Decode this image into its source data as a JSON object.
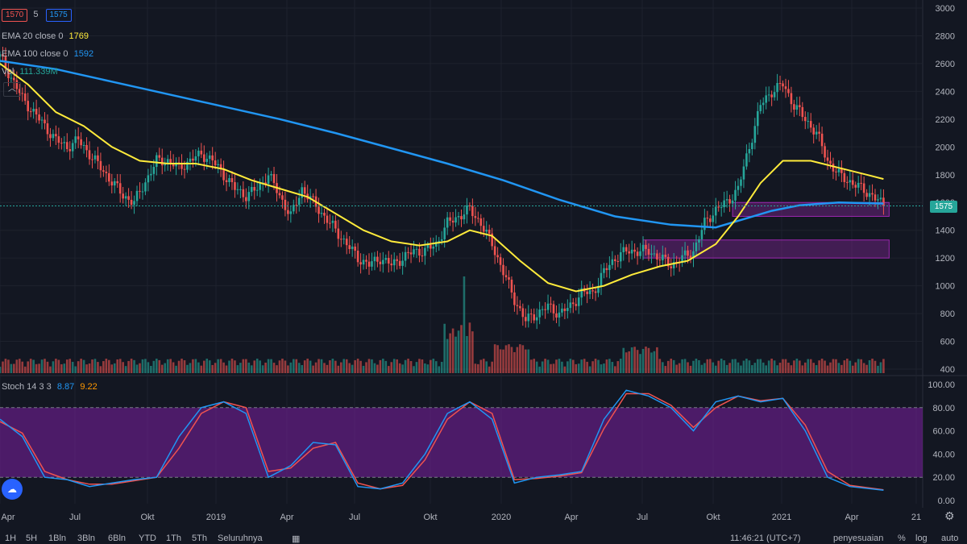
{
  "legend": {
    "open_box": "1570",
    "interval": "5",
    "close_box": "1575",
    "ema20_label": "EMA 20 close 0",
    "ema20_value": "1769",
    "ema100_label": "EMA 100 close 0",
    "ema100_value": "1592",
    "vol_label": "Vol",
    "vol_value": "111.339M",
    "stoch_label": "Stoch 14 3 3",
    "stoch_k": "8.87",
    "stoch_d": "9.22"
  },
  "current_price": "1575",
  "bottom_bar": {
    "ranges": [
      "1H",
      "5H",
      "1Bln",
      "3Bln",
      "6Bln",
      "YTD",
      "1Th",
      "5Th",
      "Seluruhnya"
    ],
    "time": "11:46:21 (UTC+7)",
    "adjust": "penyesuaian",
    "percent": "%",
    "log": "log",
    "auto": "auto"
  },
  "chart_data": [
    {
      "type": "candlestick",
      "price_axis_ticks": [
        400,
        600,
        800,
        1000,
        1200,
        1400,
        1600,
        1800,
        2000,
        2200,
        2400,
        2600,
        2800,
        3000
      ],
      "time_axis_labels": [
        "Apr",
        "Jul",
        "Okt",
        "2019",
        "Apr",
        "Jul",
        "Okt",
        "2020",
        "Apr",
        "Jul",
        "Okt",
        "2021",
        "Apr",
        "21"
      ],
      "ylim": [
        400,
        3000
      ],
      "close_series": [
        [
          0,
          2650
        ],
        [
          4,
          2500
        ],
        [
          8,
          2350
        ],
        [
          12,
          2250
        ],
        [
          16,
          2150
        ],
        [
          20,
          2050
        ],
        [
          24,
          2000
        ],
        [
          28,
          2050
        ],
        [
          32,
          1950
        ],
        [
          36,
          1850
        ],
        [
          40,
          1750
        ],
        [
          44,
          1650
        ],
        [
          48,
          1600
        ],
        [
          52,
          1750
        ],
        [
          56,
          1900
        ],
        [
          60,
          1900
        ],
        [
          64,
          1850
        ],
        [
          68,
          1900
        ],
        [
          72,
          1950
        ],
        [
          76,
          1900
        ],
        [
          80,
          1800
        ],
        [
          84,
          1700
        ],
        [
          88,
          1650
        ],
        [
          92,
          1700
        ],
        [
          96,
          1800
        ],
        [
          100,
          1650
        ],
        [
          104,
          1500
        ],
        [
          108,
          1700
        ],
        [
          112,
          1600
        ],
        [
          116,
          1500
        ],
        [
          120,
          1400
        ],
        [
          124,
          1300
        ],
        [
          128,
          1200
        ],
        [
          132,
          1150
        ],
        [
          136,
          1200
        ],
        [
          140,
          1150
        ],
        [
          144,
          1200
        ],
        [
          148,
          1250
        ],
        [
          152,
          1250
        ],
        [
          156,
          1300
        ],
        [
          160,
          1450
        ],
        [
          164,
          1500
        ],
        [
          168,
          1550
        ],
        [
          172,
          1450
        ],
        [
          176,
          1300
        ],
        [
          180,
          1100
        ],
        [
          184,
          900
        ],
        [
          188,
          750
        ],
        [
          192,
          800
        ],
        [
          196,
          850
        ],
        [
          200,
          800
        ],
        [
          204,
          850
        ],
        [
          208,
          950
        ],
        [
          212,
          950
        ],
        [
          216,
          1100
        ],
        [
          220,
          1200
        ],
        [
          224,
          1250
        ],
        [
          228,
          1250
        ],
        [
          232,
          1250
        ],
        [
          236,
          1200
        ],
        [
          240,
          1150
        ],
        [
          244,
          1200
        ],
        [
          248,
          1250
        ],
        [
          252,
          1450
        ],
        [
          256,
          1550
        ],
        [
          260,
          1600
        ],
        [
          264,
          1700
        ],
        [
          268,
          2000
        ],
        [
          272,
          2300
        ],
        [
          276,
          2400
        ],
        [
          280,
          2450
        ],
        [
          284,
          2300
        ],
        [
          288,
          2200
        ],
        [
          292,
          2100
        ],
        [
          296,
          1900
        ],
        [
          300,
          1800
        ],
        [
          304,
          1750
        ],
        [
          308,
          1700
        ],
        [
          312,
          1650
        ],
        [
          316,
          1575
        ]
      ],
      "ema20_series": [
        [
          0,
          2600
        ],
        [
          10,
          2450
        ],
        [
          20,
          2250
        ],
        [
          30,
          2150
        ],
        [
          40,
          2000
        ],
        [
          50,
          1900
        ],
        [
          60,
          1880
        ],
        [
          70,
          1880
        ],
        [
          80,
          1840
        ],
        [
          90,
          1760
        ],
        [
          100,
          1700
        ],
        [
          110,
          1640
        ],
        [
          120,
          1520
        ],
        [
          130,
          1400
        ],
        [
          140,
          1320
        ],
        [
          150,
          1290
        ],
        [
          160,
          1320
        ],
        [
          168,
          1400
        ],
        [
          176,
          1360
        ],
        [
          186,
          1180
        ],
        [
          196,
          1020
        ],
        [
          206,
          960
        ],
        [
          216,
          1000
        ],
        [
          226,
          1080
        ],
        [
          236,
          1140
        ],
        [
          246,
          1180
        ],
        [
          256,
          1300
        ],
        [
          264,
          1500
        ],
        [
          272,
          1740
        ],
        [
          280,
          1900
        ],
        [
          290,
          1900
        ],
        [
          300,
          1850
        ],
        [
          310,
          1800
        ],
        [
          316,
          1769
        ]
      ],
      "ema100_series": [
        [
          0,
          2620
        ],
        [
          20,
          2560
        ],
        [
          40,
          2470
        ],
        [
          60,
          2380
        ],
        [
          80,
          2290
        ],
        [
          100,
          2200
        ],
        [
          120,
          2100
        ],
        [
          140,
          1990
        ],
        [
          160,
          1880
        ],
        [
          180,
          1760
        ],
        [
          200,
          1620
        ],
        [
          220,
          1500
        ],
        [
          240,
          1440
        ],
        [
          256,
          1420
        ],
        [
          266,
          1480
        ],
        [
          276,
          1540
        ],
        [
          286,
          1580
        ],
        [
          300,
          1600
        ],
        [
          316,
          1592
        ]
      ],
      "zones": [
        {
          "from_x": 262,
          "to_x": 318,
          "low": 1500,
          "high": 1600
        },
        {
          "from_x": 230,
          "to_x": 318,
          "low": 1200,
          "high": 1330
        }
      ]
    },
    {
      "type": "line",
      "title": "Stoch 14 3 3",
      "ylim": [
        0,
        100
      ],
      "y_ticks": [
        0,
        20,
        40,
        60,
        80,
        100
      ],
      "band": [
        20,
        80
      ],
      "series": [
        {
          "name": "%K",
          "points": [
            [
              0,
              70
            ],
            [
              8,
              55
            ],
            [
              16,
              20
            ],
            [
              24,
              18
            ],
            [
              32,
              12
            ],
            [
              40,
              15
            ],
            [
              48,
              18
            ],
            [
              56,
              20
            ],
            [
              64,
              55
            ],
            [
              72,
              80
            ],
            [
              80,
              85
            ],
            [
              88,
              75
            ],
            [
              96,
              20
            ],
            [
              104,
              30
            ],
            [
              112,
              50
            ],
            [
              120,
              48
            ],
            [
              128,
              12
            ],
            [
              136,
              10
            ],
            [
              144,
              15
            ],
            [
              152,
              40
            ],
            [
              160,
              75
            ],
            [
              168,
              85
            ],
            [
              176,
              70
            ],
            [
              184,
              15
            ],
            [
              192,
              20
            ],
            [
              200,
              22
            ],
            [
              208,
              25
            ],
            [
              216,
              70
            ],
            [
              224,
              95
            ],
            [
              232,
              90
            ],
            [
              240,
              80
            ],
            [
              248,
              60
            ],
            [
              256,
              85
            ],
            [
              264,
              90
            ],
            [
              272,
              85
            ],
            [
              280,
              88
            ],
            [
              288,
              60
            ],
            [
              296,
              20
            ],
            [
              304,
              12
            ],
            [
              316,
              8.87
            ]
          ]
        },
        {
          "name": "%D",
          "points": [
            [
              0,
              68
            ],
            [
              8,
              58
            ],
            [
              16,
              25
            ],
            [
              24,
              18
            ],
            [
              32,
              14
            ],
            [
              40,
              14
            ],
            [
              48,
              17
            ],
            [
              56,
              20
            ],
            [
              64,
              45
            ],
            [
              72,
              75
            ],
            [
              80,
              85
            ],
            [
              88,
              80
            ],
            [
              96,
              25
            ],
            [
              104,
              28
            ],
            [
              112,
              45
            ],
            [
              120,
              50
            ],
            [
              128,
              15
            ],
            [
              136,
              10
            ],
            [
              144,
              13
            ],
            [
              152,
              35
            ],
            [
              160,
              70
            ],
            [
              168,
              85
            ],
            [
              176,
              75
            ],
            [
              184,
              18
            ],
            [
              192,
              19
            ],
            [
              200,
              21
            ],
            [
              208,
              24
            ],
            [
              216,
              62
            ],
            [
              224,
              92
            ],
            [
              232,
              92
            ],
            [
              240,
              82
            ],
            [
              248,
              63
            ],
            [
              256,
              80
            ],
            [
              264,
              90
            ],
            [
              272,
              86
            ],
            [
              280,
              88
            ],
            [
              288,
              65
            ],
            [
              296,
              25
            ],
            [
              304,
              13
            ],
            [
              316,
              9.22
            ]
          ]
        }
      ]
    }
  ]
}
